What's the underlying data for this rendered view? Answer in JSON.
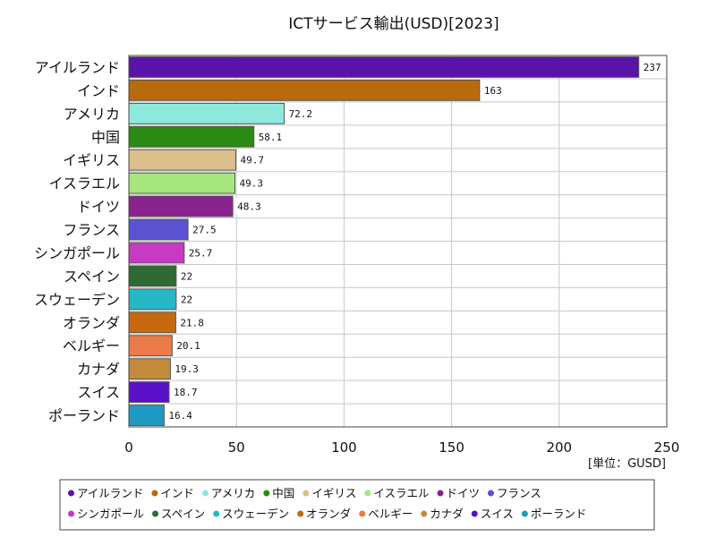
{
  "chart_data": {
    "type": "bar",
    "orientation": "horizontal",
    "title": "ICTサービス輸出(USD)[2023]",
    "unit": "[単位：GUSD]",
    "categories": [
      "アイルランド",
      "インド",
      "アメリカ",
      "中国",
      "イギリス",
      "イスラエル",
      "ドイツ",
      "フランス",
      "シンガポール",
      "スペイン",
      "スウェーデン",
      "オランダ",
      "ベルギー",
      "カナダ",
      "スイス",
      "ポーランド"
    ],
    "values": [
      237,
      163,
      72.2,
      58.1,
      49.7,
      49.3,
      48.3,
      27.5,
      25.7,
      22,
      22,
      21.8,
      20.1,
      19.3,
      18.7,
      16.4
    ],
    "value_labels": [
      "237",
      "163",
      "72.2",
      "58.1",
      "49.7",
      "49.3",
      "48.3",
      "27.5",
      "25.7",
      "22",
      "22",
      "21.8",
      "20.1",
      "19.3",
      "18.7",
      "16.4"
    ],
    "colors": [
      "#5a12a8",
      "#b86a0c",
      "#8fe8dc",
      "#2a8a12",
      "#dcbf8a",
      "#a6e67c",
      "#8a2290",
      "#5a52d2",
      "#c63ac4",
      "#2f6a32",
      "#26b8c6",
      "#c7680e",
      "#ea7a48",
      "#c48a3c",
      "#5a10c8",
      "#1e9ac2"
    ],
    "xlim": [
      0,
      250
    ],
    "xticks": [
      0,
      50,
      100,
      150,
      200,
      250
    ],
    "xtick_labels": [
      "0",
      "50",
      "100",
      "150",
      "200",
      "250"
    ],
    "grid": true,
    "legend_placement": "bottom",
    "legend_rows": [
      [
        "アイルランド",
        "インド",
        "アメリカ",
        "中国",
        "イギリス",
        "イスラエル",
        "ドイツ",
        "フランス"
      ],
      [
        "シンガポール",
        "スペイン",
        "スウェーデン",
        "オランダ",
        "ベルギー",
        "カナダ",
        "スイス",
        "ポーランド"
      ]
    ]
  }
}
